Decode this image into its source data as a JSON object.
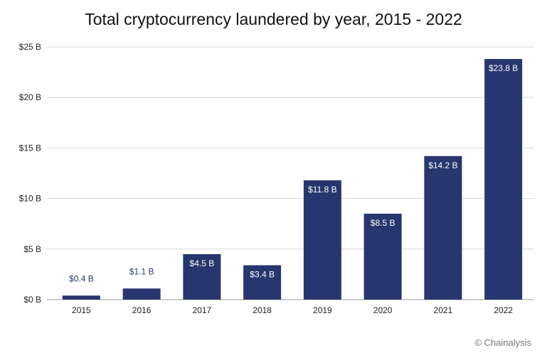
{
  "chart_data": {
    "type": "bar",
    "title": "Total cryptocurrency laundered by year, 2015 - 2022",
    "categories": [
      "2015",
      "2016",
      "2017",
      "2018",
      "2019",
      "2020",
      "2021",
      "2022"
    ],
    "values": [
      0.4,
      1.1,
      4.5,
      3.4,
      11.8,
      8.5,
      14.2,
      23.8
    ],
    "value_labels": [
      "$0.4 B",
      "$1.1 B",
      "$4.5 B",
      "$3.4 B",
      "$11.8 B",
      "$8.5 B",
      "$14.2 B",
      "$23.8 B"
    ],
    "ylim": [
      0,
      25
    ],
    "yticks": [
      0,
      5,
      10,
      15,
      20,
      25
    ],
    "ytick_labels": [
      "$0 B",
      "$5 B",
      "$10 B",
      "$15 B",
      "$20 B",
      "$25 B"
    ],
    "xlabel": "",
    "ylabel": "",
    "grid": true,
    "bar_color": "#27366e",
    "outside_label_color": "#27366e",
    "inside_label_color": "#ffffff"
  },
  "credit": "© Chainalysis"
}
